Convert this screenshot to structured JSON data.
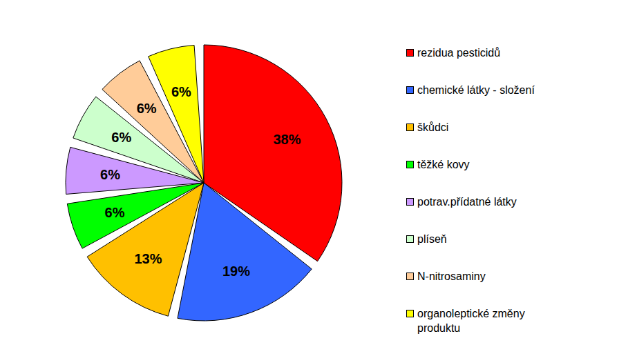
{
  "chart_data": {
    "type": "pie",
    "categories": [
      "rezidua pesticidů",
      "chemické látky - složení",
      "škůdci",
      "těžké kovy",
      "potrav.přídatné látky",
      "plíseň",
      "N-nitrosaminy",
      "organoleptické změny produktu"
    ],
    "values": [
      38,
      19,
      13,
      6,
      6,
      6,
      6,
      6
    ],
    "value_labels": [
      "38%",
      "19%",
      "13%",
      "6%",
      "6%",
      "6%",
      "6%",
      "6%"
    ],
    "colors": [
      "#ff0000",
      "#3366ff",
      "#ffc000",
      "#00ff00",
      "#cc99ff",
      "#ccffcc",
      "#ffcc99",
      "#ffff00"
    ],
    "data_labels": true,
    "legend": "right"
  }
}
